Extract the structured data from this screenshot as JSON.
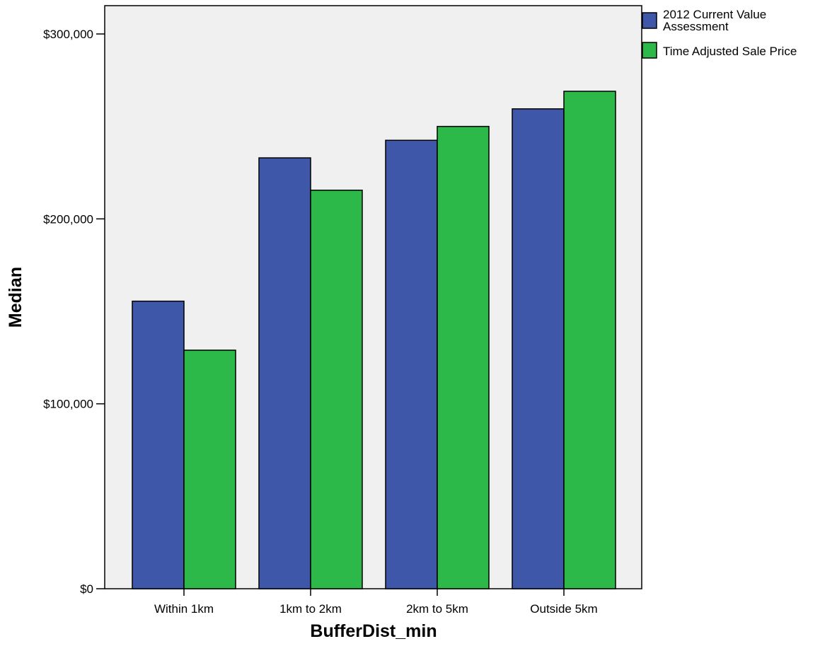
{
  "chart_data": {
    "type": "bar",
    "categories": [
      "Within 1km",
      "1km to 2km",
      "2km to 5km",
      "Outside 5km"
    ],
    "series": [
      {
        "name": "2012 Current Value Assessment",
        "legend_lines": [
          "2012 Current Value",
          "Assessment"
        ],
        "color": "#3f57a8",
        "values": [
          155500,
          233000,
          242500,
          259500
        ]
      },
      {
        "name": "Time Adjusted Sale Price",
        "legend_lines": [
          "Time Adjusted Sale Price"
        ],
        "color": "#2db84a",
        "values": [
          129000,
          215500,
          250000,
          269000
        ]
      }
    ],
    "xlabel": "BufferDist_min",
    "ylabel": "Median",
    "ylim": [
      0,
      300000
    ],
    "yticks": [
      0,
      100000,
      200000,
      300000
    ],
    "ytick_labels": [
      "$0",
      "$100,000",
      "$200,000",
      "$300,000"
    ],
    "plot_background": "#f0f0f0",
    "grid": false,
    "legend_position": "top-right outside plot"
  }
}
